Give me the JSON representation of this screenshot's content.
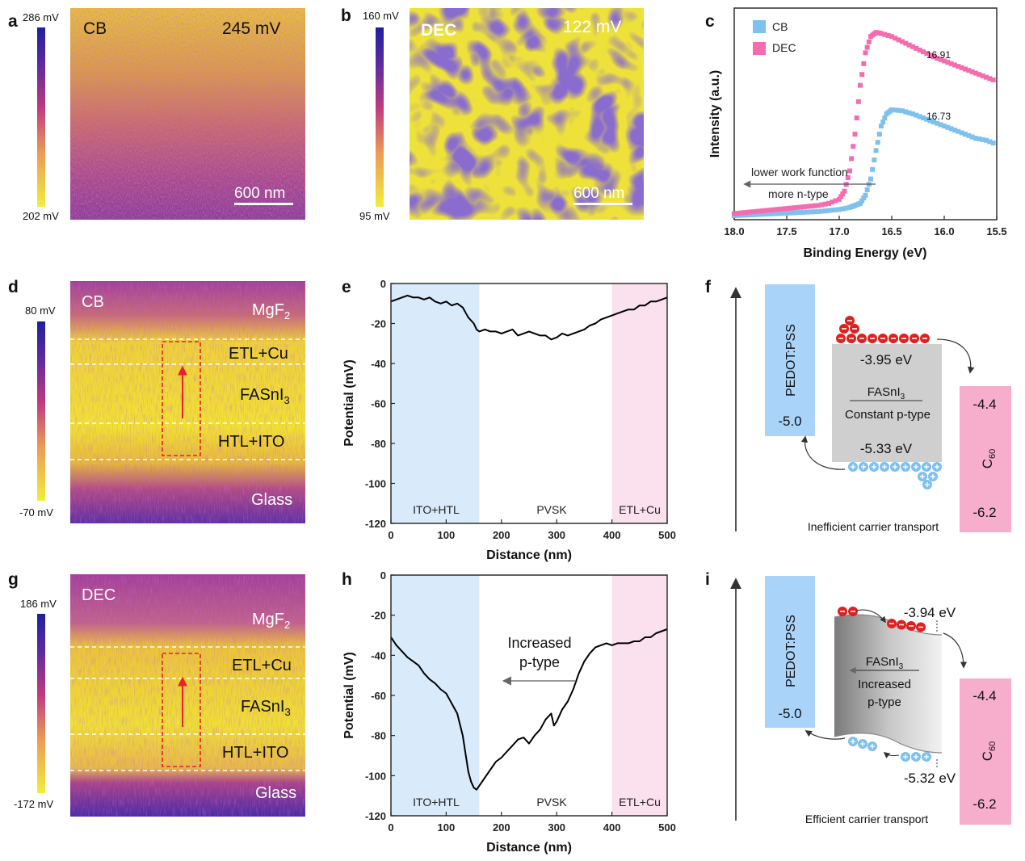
{
  "panel_letters": {
    "a": "a",
    "b": "b",
    "c": "c",
    "d": "d",
    "e": "e",
    "f": "f",
    "g": "g",
    "h": "h",
    "i": "i"
  },
  "colors": {
    "cb": "#7ec0ee",
    "dec": "#f46cb0",
    "region_left": "#d9eafb",
    "region_right": "#fbe0ee",
    "band_blue": "#a9d3f8",
    "band_pink": "#f7aecd",
    "cbar_top": "#2a2aa8",
    "cbar_mid": "#c44a7a",
    "cbar_bottom": "#ecec3a"
  },
  "panel_a": {
    "label": "CB",
    "voltage": "245 mV",
    "scalebar": "600 nm",
    "cbar_max": "286 mV",
    "cbar_min": "202 mV"
  },
  "panel_b": {
    "label": "DEC",
    "voltage": "122 mV",
    "scalebar": "600 nm",
    "cbar_max": "160 mV",
    "cbar_min": "95 mV"
  },
  "panel_c": {
    "legend": [
      "CB",
      "DEC"
    ],
    "annotation": [
      "lower work function",
      "more n-type"
    ],
    "peak_labels": [
      "16.91",
      "16.73"
    ]
  },
  "panel_d": {
    "label": "CB",
    "cbar_max": "80 mV",
    "cbar_min": "-70 mV",
    "layers": [
      "MgF",
      "ETL+Cu",
      "FASnI",
      "HTL+ITO",
      "Glass"
    ],
    "subs": [
      "2",
      "3"
    ]
  },
  "panel_g": {
    "label": "DEC",
    "cbar_max": "186 mV",
    "cbar_min": "-172 mV",
    "layers": [
      "MgF",
      "ETL+Cu",
      "FASnI",
      "HTL+ITO",
      "Glass"
    ],
    "subs": [
      "2",
      "3"
    ]
  },
  "panel_e": {
    "regions": [
      "ITO+HTL",
      "PVSK",
      "ETL+Cu"
    ]
  },
  "panel_h": {
    "regions": [
      "ITO+HTL",
      "PVSK",
      "ETL+Cu"
    ],
    "annotation": [
      "Increased",
      "p-type"
    ]
  },
  "panel_f": {
    "pedot": "PEDOT:PSS",
    "pedot_level": "-5.0",
    "c60_levels": [
      "-4.4",
      "-6.2"
    ],
    "c60": "C",
    "c60_sub": "60",
    "cbm": "-3.95 eV",
    "vbm": "-5.33 eV",
    "material": "FASnI",
    "material_sub": "3",
    "type_text": "Constant p-type",
    "caption": "Inefficient carrier transport"
  },
  "panel_i": {
    "pedot": "PEDOT:PSS",
    "pedot_level": "-5.0",
    "c60_levels": [
      "-4.4",
      "-6.2"
    ],
    "c60": "C",
    "c60_sub": "60",
    "cbm": "-3.94 eV",
    "vbm": "-5.32 eV",
    "material": "FASnI",
    "material_sub": "3",
    "type_text": [
      "Increased",
      "p-type"
    ],
    "caption": "Efficient carrier transport"
  },
  "chart_data": [
    {
      "panel": "c",
      "type": "scatter",
      "xlabel": "Binding Energy (eV)",
      "ylabel": "Intensity (a.u.)",
      "xlim": [
        18.0,
        15.5
      ],
      "xticks": [
        "18.0",
        "17.5",
        "17.0",
        "16.5",
        "16.0",
        "15.5"
      ],
      "xtick_values": [
        18.0,
        17.5,
        17.0,
        16.5,
        16.0,
        15.5
      ],
      "ylim": [
        0,
        1
      ],
      "legend": "top-left",
      "series": [
        {
          "name": "CB",
          "color": "#7ec0ee",
          "x": [
            18.0,
            17.8,
            17.6,
            17.4,
            17.2,
            17.0,
            16.9,
            16.85,
            16.8,
            16.75,
            16.7,
            16.65,
            16.6,
            16.55,
            16.5,
            16.4,
            16.3,
            16.2,
            16.1,
            16.0,
            15.9,
            15.8,
            15.7,
            15.6,
            15.5
          ],
          "y": [
            0.02,
            0.025,
            0.03,
            0.035,
            0.04,
            0.05,
            0.06,
            0.07,
            0.08,
            0.12,
            0.2,
            0.34,
            0.46,
            0.52,
            0.54,
            0.535,
            0.52,
            0.5,
            0.48,
            0.46,
            0.44,
            0.42,
            0.4,
            0.39,
            0.37
          ]
        },
        {
          "name": "DEC",
          "color": "#f46cb0",
          "x": [
            18.0,
            17.8,
            17.6,
            17.4,
            17.2,
            17.1,
            17.0,
            16.95,
            16.9,
            16.85,
            16.8,
            16.75,
            16.7,
            16.65,
            16.6,
            16.5,
            16.4,
            16.3,
            16.2,
            16.1,
            16.0,
            15.9,
            15.8,
            15.7,
            15.6,
            15.5
          ],
          "y": [
            0.03,
            0.04,
            0.05,
            0.06,
            0.07,
            0.08,
            0.1,
            0.14,
            0.24,
            0.42,
            0.66,
            0.82,
            0.9,
            0.92,
            0.915,
            0.9,
            0.875,
            0.85,
            0.825,
            0.8,
            0.78,
            0.76,
            0.74,
            0.72,
            0.7,
            0.68
          ]
        }
      ]
    },
    {
      "panel": "e",
      "type": "line",
      "xlabel": "Distance (nm)",
      "ylabel": "Potential (mV)",
      "xlim": [
        0,
        500
      ],
      "ylim": [
        -120,
        0
      ],
      "xticks": [
        "0",
        "100",
        "200",
        "300",
        "400",
        "500"
      ],
      "xtick_values": [
        0,
        100,
        200,
        300,
        400,
        500
      ],
      "yticks": [
        "0",
        "-20",
        "-40",
        "-60",
        "-80",
        "-100",
        "-120"
      ],
      "ytick_values": [
        0,
        -20,
        -40,
        -60,
        -80,
        -100,
        -120
      ],
      "regions": [
        {
          "label": "ITO+HTL",
          "x": [
            0,
            160
          ]
        },
        {
          "label": "ETL+Cu",
          "x": [
            400,
            500
          ]
        }
      ],
      "series": [
        {
          "color": "#000000",
          "x": [
            0,
            10,
            20,
            30,
            40,
            50,
            60,
            70,
            80,
            90,
            100,
            110,
            120,
            130,
            140,
            150,
            155,
            160,
            170,
            180,
            190,
            200,
            210,
            220,
            230,
            240,
            250,
            260,
            270,
            280,
            290,
            300,
            310,
            320,
            330,
            340,
            350,
            360,
            370,
            380,
            390,
            400,
            410,
            420,
            430,
            440,
            450,
            460,
            470,
            480,
            490,
            500
          ],
          "y": [
            -9,
            -8,
            -7,
            -6,
            -7,
            -7,
            -8,
            -7,
            -9,
            -10,
            -9,
            -11,
            -10,
            -12,
            -17,
            -20,
            -23,
            -24,
            -23,
            -24,
            -24,
            -25,
            -24,
            -23,
            -26,
            -25,
            -24,
            -25,
            -26,
            -26,
            -28,
            -27,
            -25,
            -26,
            -25,
            -24,
            -23,
            -21,
            -20,
            -18,
            -17,
            -16,
            -15,
            -14,
            -13,
            -13,
            -11,
            -11,
            -9,
            -9,
            -8,
            -7
          ]
        }
      ]
    },
    {
      "panel": "h",
      "type": "line",
      "xlabel": "Distance (nm)",
      "ylabel": "Potential (mV)",
      "xlim": [
        0,
        500
      ],
      "ylim": [
        -120,
        0
      ],
      "xticks": [
        "0",
        "100",
        "200",
        "300",
        "400",
        "500"
      ],
      "xtick_values": [
        0,
        100,
        200,
        300,
        400,
        500
      ],
      "yticks": [
        "0",
        "-20",
        "-40",
        "-60",
        "-80",
        "-100",
        "-120"
      ],
      "ytick_values": [
        0,
        -20,
        -40,
        -60,
        -80,
        -100,
        -120
      ],
      "regions": [
        {
          "label": "ITO+HTL",
          "x": [
            0,
            160
          ]
        },
        {
          "label": "ETL+Cu",
          "x": [
            400,
            500
          ]
        }
      ],
      "series": [
        {
          "color": "#000000",
          "x": [
            0,
            10,
            20,
            30,
            40,
            50,
            60,
            70,
            80,
            90,
            100,
            110,
            120,
            130,
            140,
            145,
            150,
            155,
            160,
            170,
            180,
            190,
            200,
            210,
            220,
            230,
            240,
            250,
            260,
            270,
            280,
            290,
            295,
            300,
            310,
            320,
            330,
            340,
            350,
            360,
            370,
            380,
            390,
            400,
            410,
            420,
            430,
            440,
            450,
            460,
            470,
            480,
            490,
            500
          ],
          "y": [
            -31,
            -35,
            -38,
            -41,
            -43,
            -45,
            -49,
            -52,
            -54,
            -57,
            -59,
            -64,
            -69,
            -80,
            -98,
            -103,
            -106,
            -107,
            -105,
            -101,
            -97,
            -93,
            -91,
            -88,
            -85,
            -82,
            -81,
            -84,
            -80,
            -77,
            -72,
            -69,
            -75,
            -73,
            -67,
            -63,
            -57,
            -49,
            -43,
            -39,
            -36,
            -35,
            -34,
            -35,
            -34,
            -34,
            -34,
            -33,
            -33,
            -31,
            -31,
            -29,
            -28,
            -27
          ]
        }
      ]
    }
  ]
}
